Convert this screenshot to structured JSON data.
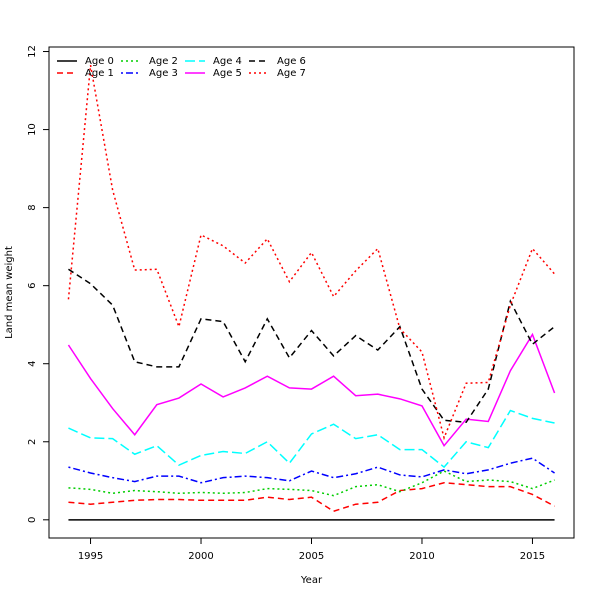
{
  "chart_data": {
    "type": "line",
    "xlabel": "Year",
    "ylabel": "Land mean weight",
    "x": [
      1994,
      1995,
      1996,
      1997,
      1998,
      1999,
      2000,
      2001,
      2002,
      2003,
      2004,
      2005,
      2006,
      2007,
      2008,
      2009,
      2010,
      2011,
      2012,
      2013,
      2014,
      2015,
      2016
    ],
    "xlim": [
      1993.12,
      2016.88
    ],
    "ylim": [
      -0.466,
      12.116
    ],
    "xticks": [
      1995,
      2000,
      2005,
      2010,
      2015
    ],
    "yticks": [
      0,
      2,
      4,
      6,
      8,
      10,
      12
    ],
    "legend": "top-left",
    "series": [
      {
        "name": "Age 0",
        "color": "#000000",
        "linestyle": "solid",
        "values": [
          0,
          0,
          0,
          0,
          0,
          0,
          0,
          0,
          0,
          0,
          0,
          0,
          0,
          0,
          0,
          0,
          0,
          0,
          0,
          0,
          0,
          0,
          0
        ]
      },
      {
        "name": "Age 1",
        "color": "#ff0000",
        "linestyle": "dashed",
        "values": [
          0.45,
          0.4,
          0.45,
          0.5,
          0.52,
          0.52,
          0.5,
          0.5,
          0.5,
          0.58,
          0.52,
          0.58,
          0.22,
          0.4,
          0.45,
          0.75,
          0.8,
          0.95,
          0.9,
          0.85,
          0.85,
          0.65,
          0.35
        ]
      },
      {
        "name": "Age 2",
        "color": "#00cd00",
        "linestyle": "dotted",
        "values": [
          0.82,
          0.78,
          0.68,
          0.75,
          0.72,
          0.68,
          0.7,
          0.68,
          0.7,
          0.8,
          0.78,
          0.75,
          0.62,
          0.85,
          0.9,
          0.72,
          0.95,
          1.25,
          0.98,
          1.02,
          0.98,
          0.8,
          1.02
        ]
      },
      {
        "name": "Age 3",
        "color": "#0000ff",
        "linestyle": "dotdash",
        "values": [
          1.35,
          1.2,
          1.08,
          0.98,
          1.12,
          1.12,
          0.95,
          1.08,
          1.12,
          1.08,
          1.0,
          1.25,
          1.08,
          1.18,
          1.35,
          1.15,
          1.1,
          1.28,
          1.18,
          1.28,
          1.45,
          1.58,
          1.2
        ]
      },
      {
        "name": "Age 4",
        "color": "#00ffff",
        "linestyle": "longdash",
        "values": [
          2.35,
          2.1,
          2.08,
          1.68,
          1.9,
          1.4,
          1.65,
          1.75,
          1.7,
          2.0,
          1.45,
          2.2,
          2.45,
          2.08,
          2.18,
          1.8,
          1.8,
          1.35,
          2.0,
          1.85,
          2.8,
          2.6,
          2.48
        ]
      },
      {
        "name": "Age 5",
        "color": "#ff00ff",
        "linestyle": "solid",
        "values": [
          4.48,
          3.62,
          2.85,
          2.18,
          2.95,
          3.12,
          3.48,
          3.15,
          3.38,
          3.68,
          3.38,
          3.35,
          3.68,
          3.18,
          3.22,
          3.1,
          2.92,
          1.9,
          2.58,
          2.52,
          3.82,
          4.75,
          3.25
        ]
      },
      {
        "name": "Age 6",
        "color": "#000000",
        "linestyle": "dashed",
        "values": [
          6.42,
          6.05,
          5.5,
          4.05,
          3.92,
          3.92,
          5.15,
          5.08,
          4.05,
          5.15,
          4.15,
          4.85,
          4.2,
          4.72,
          4.35,
          4.95,
          3.35,
          2.55,
          2.5,
          3.35,
          5.6,
          4.5,
          4.95
        ]
      },
      {
        "name": "Age 7",
        "color": "#ff0000",
        "linestyle": "dotted",
        "values": [
          5.65,
          11.65,
          8.45,
          6.4,
          6.42,
          4.95,
          7.3,
          7.02,
          6.58,
          7.2,
          6.1,
          6.85,
          5.72,
          6.38,
          6.95,
          4.9,
          4.3,
          2.1,
          3.5,
          3.52,
          5.5,
          6.95,
          6.3
        ]
      }
    ]
  }
}
